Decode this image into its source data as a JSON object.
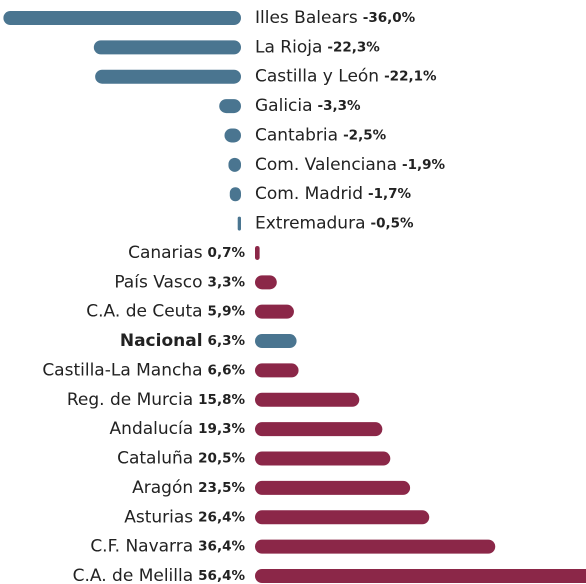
{
  "chart_data": {
    "type": "bar",
    "orientation": "horizontal",
    "categories": [
      "Illes Balears",
      "La Rioja",
      "Castilla y León",
      "Galicia",
      "Cantabria",
      "Com. Valenciana",
      "Com. Madrid",
      "Extremadura",
      "Canarias",
      "País Vasco",
      "C.A. de Ceuta",
      "Nacional",
      "Castilla-La Mancha",
      "Reg. de Murcia",
      "Andalucía",
      "Cataluña",
      "Aragón",
      "Asturias",
      "C.F. Navarra",
      "C.A. de Melilla"
    ],
    "values": [
      -36.0,
      -22.3,
      -22.1,
      -3.3,
      -2.5,
      -1.9,
      -1.7,
      -0.5,
      0.7,
      3.3,
      5.9,
      6.3,
      6.6,
      15.8,
      19.3,
      20.5,
      23.5,
      26.4,
      36.4,
      56.4
    ],
    "value_labels": [
      "-36,0%",
      "-22,3%",
      "-22,1%",
      "-3,3%",
      "-2,5%",
      "-1,9%",
      "-1,7%",
      "-0,5%",
      "0,7%",
      "3,3%",
      "5,9%",
      "6,3%",
      "6,6%",
      "15,8%",
      "19,3%",
      "20,5%",
      "23,5%",
      "26,4%",
      "36,4%",
      "56,4%"
    ],
    "colors": [
      "#4a7590",
      "#4a7590",
      "#4a7590",
      "#4a7590",
      "#4a7590",
      "#4a7590",
      "#4a7590",
      "#4a7590",
      "#8b2748",
      "#8b2748",
      "#8b2748",
      "#4a7590",
      "#8b2748",
      "#8b2748",
      "#8b2748",
      "#8b2748",
      "#8b2748",
      "#8b2748",
      "#8b2748",
      "#8b2748"
    ],
    "emphasis": [
      false,
      false,
      false,
      false,
      false,
      false,
      false,
      false,
      false,
      false,
      false,
      true,
      false,
      false,
      false,
      false,
      false,
      false,
      false,
      false
    ]
  }
}
